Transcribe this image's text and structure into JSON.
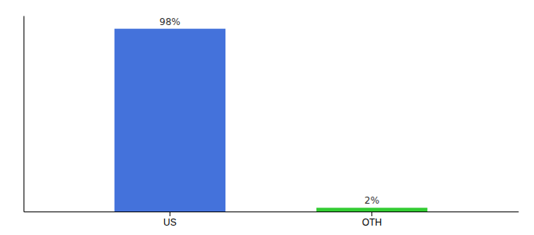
{
  "chart_data": {
    "type": "bar",
    "categories": [
      "US",
      "OTH"
    ],
    "values": [
      98,
      2
    ],
    "value_labels": [
      "98%",
      "2%"
    ],
    "colors": [
      "#4472db",
      "#33cc33"
    ],
    "ylim": [
      0,
      105
    ],
    "data_labels": true,
    "tick_labels": "x"
  }
}
